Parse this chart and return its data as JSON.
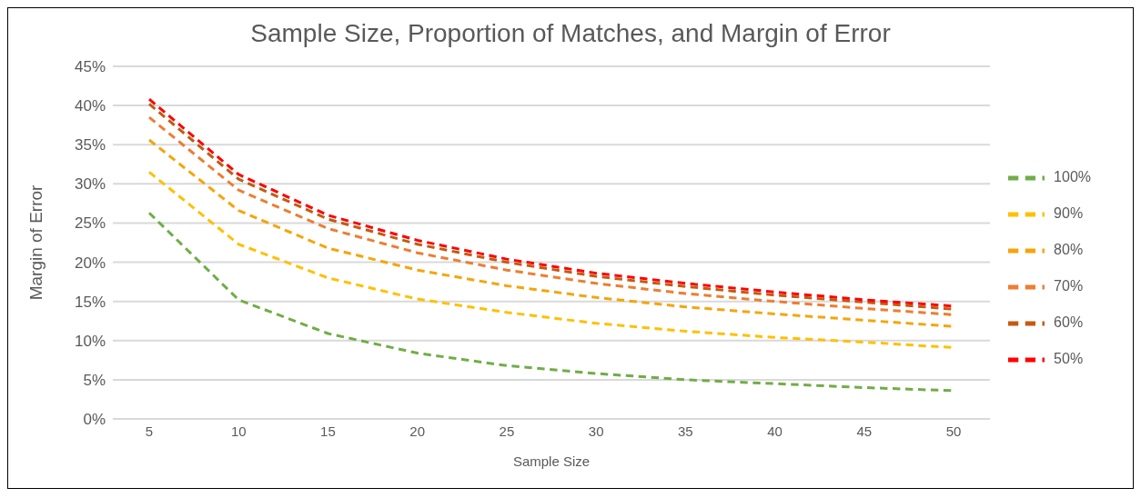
{
  "chart_data": {
    "type": "line",
    "title": "Sample Size, Proportion of Matches, and Margin of Error",
    "xlabel": "Sample Size",
    "ylabel": "Margin of Error",
    "categories": [
      "5",
      "10",
      "15",
      "20",
      "25",
      "30",
      "35",
      "40",
      "45",
      "50"
    ],
    "series": [
      {
        "name": "100%",
        "color": "#70ad47",
        "values": [
          26.3,
          15.2,
          10.9,
          8.4,
          6.8,
          5.8,
          5.0,
          4.5,
          4.0,
          3.6
        ]
      },
      {
        "name": "90%",
        "color": "#ffc000",
        "values": [
          31.5,
          22.3,
          18.0,
          15.3,
          13.6,
          12.2,
          11.2,
          10.4,
          9.8,
          9.1
        ]
      },
      {
        "name": "80%",
        "color": "#f5a50a",
        "values": [
          35.6,
          26.6,
          21.8,
          19.0,
          17.0,
          15.5,
          14.3,
          13.4,
          12.6,
          11.8
        ]
      },
      {
        "name": "70%",
        "color": "#ed7d31",
        "values": [
          38.5,
          29.2,
          24.3,
          21.2,
          19.0,
          17.3,
          16.0,
          15.0,
          14.1,
          13.3
        ]
      },
      {
        "name": "60%",
        "color": "#c55a11",
        "values": [
          40.2,
          30.6,
          25.5,
          22.3,
          20.0,
          18.2,
          16.9,
          15.8,
          14.9,
          14.0
        ]
      },
      {
        "name": "50%",
        "color": "#ff0000",
        "values": [
          40.8,
          31.2,
          26.0,
          22.8,
          20.4,
          18.6,
          17.3,
          16.2,
          15.2,
          14.4
        ]
      }
    ],
    "ylim": [
      0,
      45
    ],
    "yticks": [
      {
        "value": 0,
        "label": "0%"
      },
      {
        "value": 5,
        "label": "5%"
      },
      {
        "value": 10,
        "label": "10%"
      },
      {
        "value": 15,
        "label": "15%"
      },
      {
        "value": 20,
        "label": "20%"
      },
      {
        "value": 25,
        "label": "25%"
      },
      {
        "value": 30,
        "label": "30%"
      },
      {
        "value": 35,
        "label": "35%"
      },
      {
        "value": 40,
        "label": "40%"
      },
      {
        "value": 45,
        "label": "45%"
      }
    ],
    "grid": "y",
    "legend": "right",
    "marker": "none",
    "line_style": "dashed"
  }
}
